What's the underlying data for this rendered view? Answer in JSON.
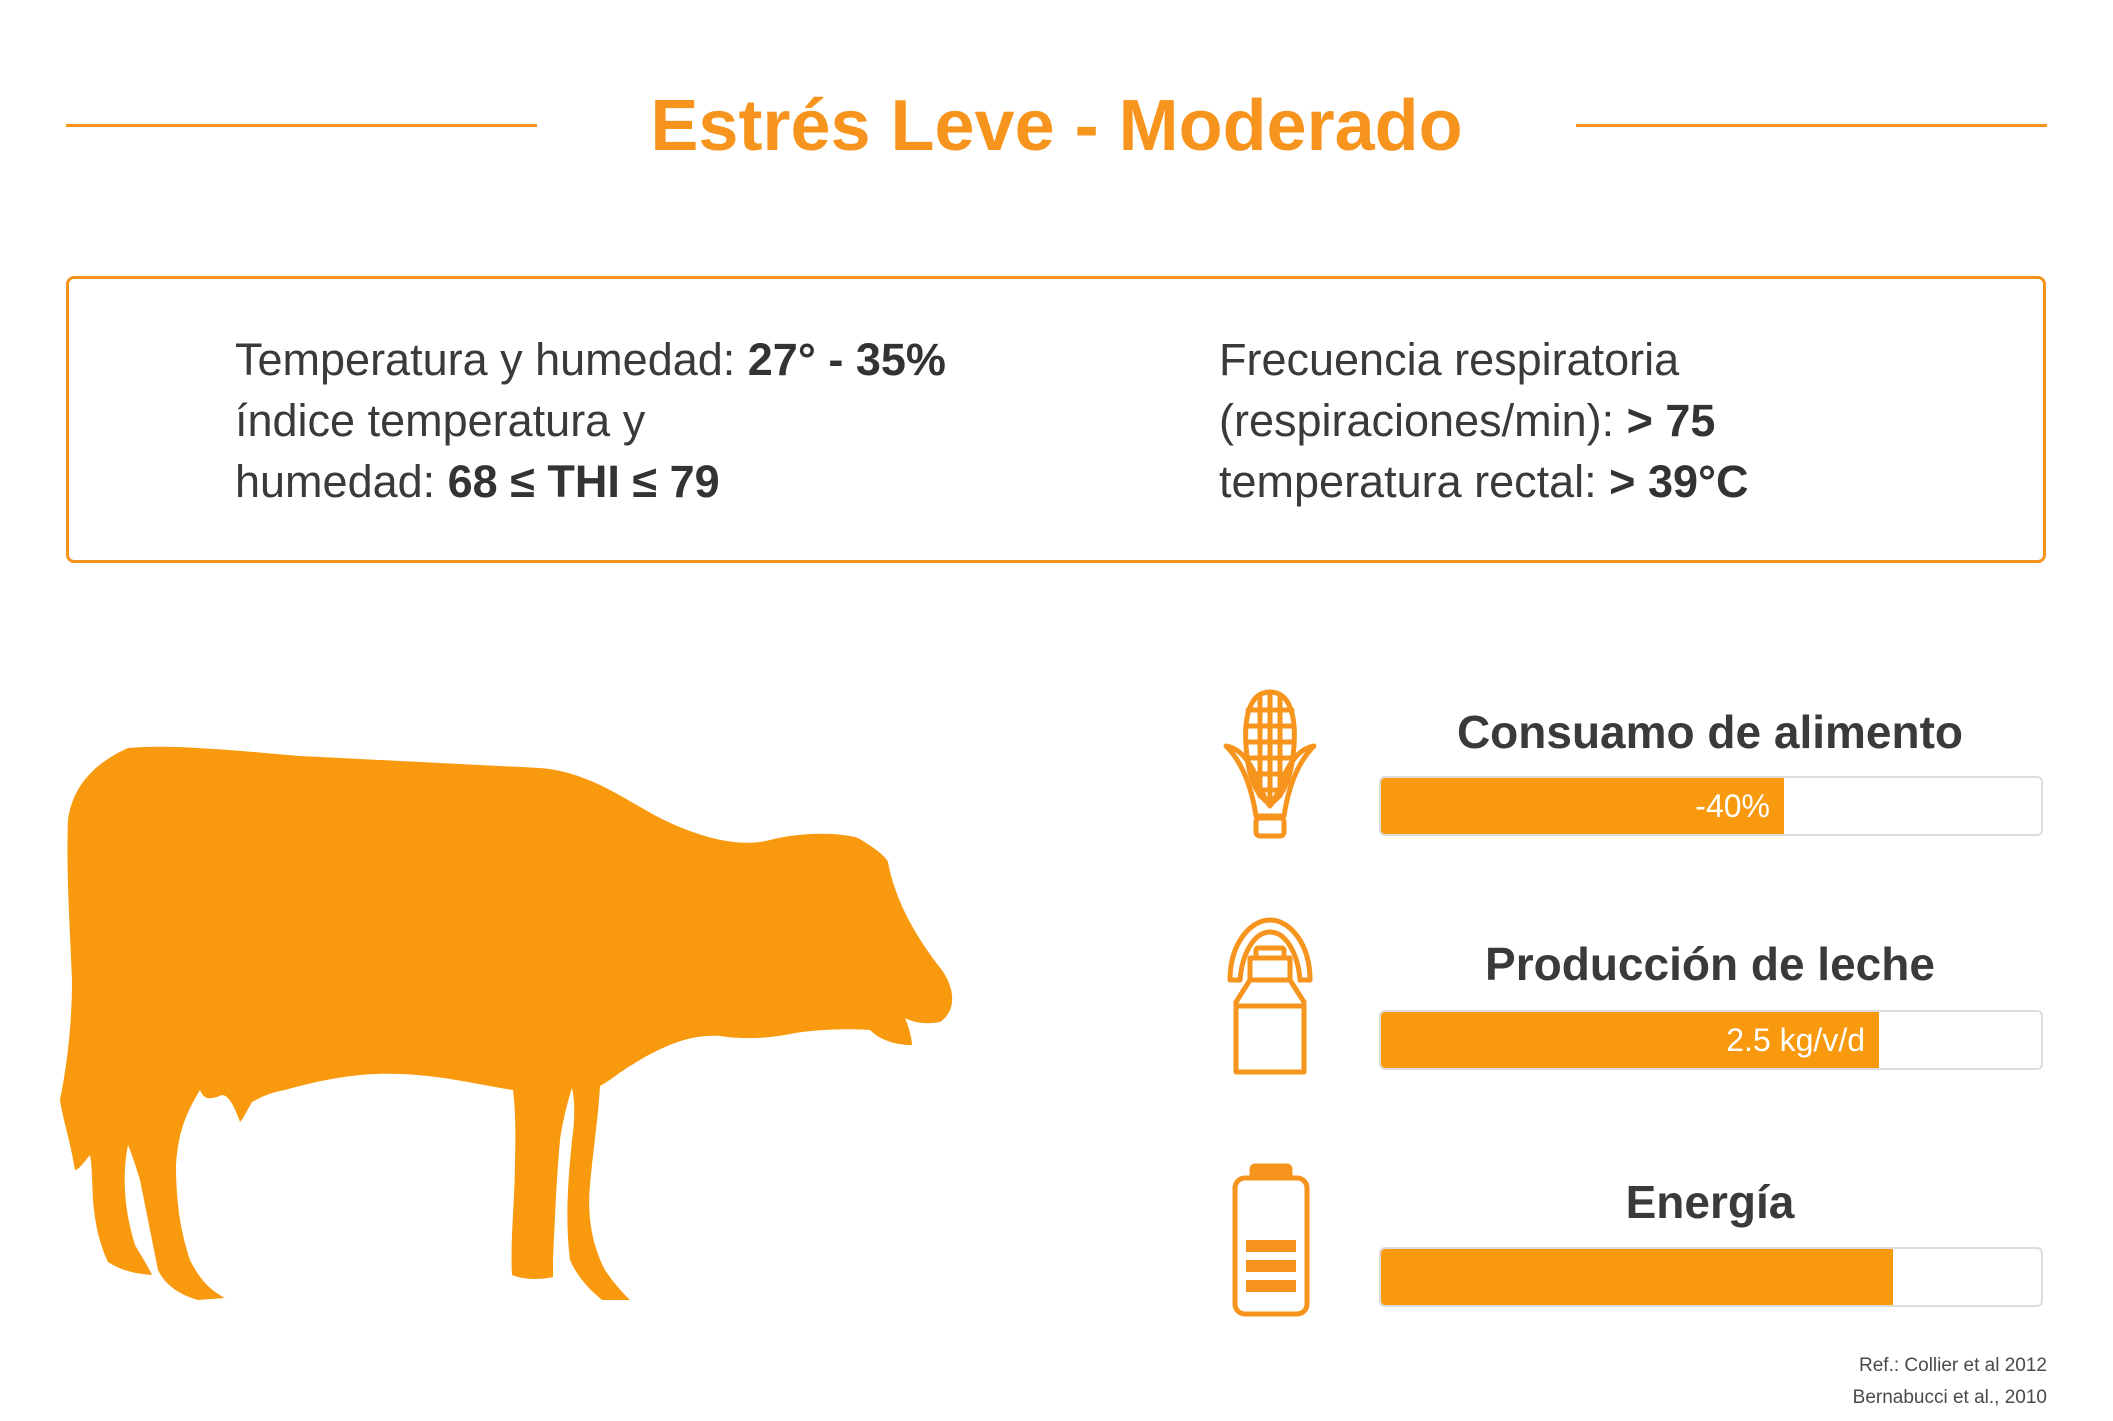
{
  "title": "Estrés Leve - Moderado",
  "colors": {
    "accent": "#f7941d",
    "bar": "#f99a0e",
    "text": "#3a3a3a"
  },
  "info": {
    "left": {
      "line1_label": "Temperatura y humedad: ",
      "line1_value": "27° - 35%",
      "line2_label": "índice temperatura y",
      "line3_label": "humedad:  ",
      "line3_value": "68 ≤  THI ≤ 79"
    },
    "right": {
      "line1_label": "Frecuencia respiratoria",
      "line2_label": "(respiraciones/min): ",
      "line2_value": "> 75",
      "line3_label": "temperatura rectal:  ",
      "line3_value": "> 39°C"
    }
  },
  "illustration": {
    "icon": "cow-silhouette-icon"
  },
  "metrics": [
    {
      "icon": "corn-icon",
      "label": "Consuamo de alimento",
      "value_text": "-40%",
      "fill": 0.61
    },
    {
      "icon": "milk-can-icon",
      "label": "Producción de leche",
      "value_text": "2.5 kg/v/d",
      "fill": 0.755
    },
    {
      "icon": "battery-icon",
      "label": "Energía",
      "value_text": "",
      "fill": 0.775
    }
  ],
  "reference": {
    "line1": "Ref.: Collier et al 2012",
    "line2": "Bernabucci et al., 2010"
  }
}
